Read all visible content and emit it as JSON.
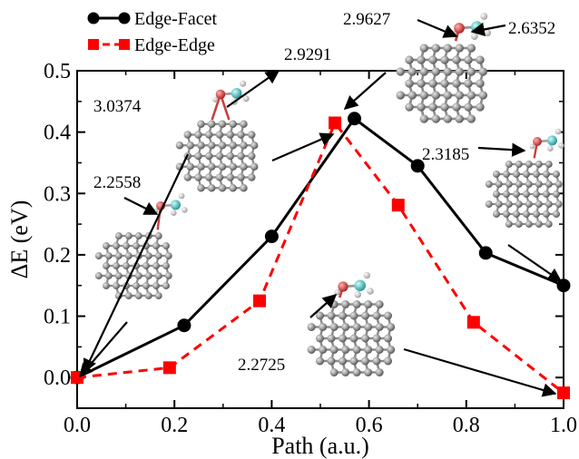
{
  "chart_data": {
    "type": "line",
    "xlabel": "Path (a.u.)",
    "ylabel": "ΔE (eV)",
    "xlim": [
      0.0,
      1.0
    ],
    "ylim": [
      -0.05,
      0.5
    ],
    "xticks": [
      "0.0",
      "0.2",
      "0.4",
      "0.6",
      "0.8",
      "1.0"
    ],
    "yticks": [
      "0.0",
      "0.1",
      "0.2",
      "0.3",
      "0.4",
      "0.5"
    ],
    "grid": false,
    "legend_position": "top-left",
    "series": [
      {
        "name": "Edge-Facet",
        "color": "#000000",
        "marker": "circle",
        "line_style": "solid",
        "x": [
          0.0,
          0.22,
          0.4,
          0.57,
          0.7,
          0.84,
          1.0
        ],
        "y": [
          0.0,
          0.085,
          0.23,
          0.422,
          0.345,
          0.203,
          0.15
        ]
      },
      {
        "name": "Edge-Edge",
        "color": "#ff0000",
        "marker": "square",
        "line_style": "dashed",
        "x": [
          0.0,
          0.19,
          0.375,
          0.53,
          0.66,
          0.815,
          1.0
        ],
        "y": [
          0.0,
          0.016,
          0.125,
          0.415,
          0.281,
          0.09,
          -0.025
        ]
      }
    ],
    "annotations": [
      {
        "text": "2.2558"
      },
      {
        "text": "3.0374"
      },
      {
        "text": "2.9291"
      },
      {
        "text": "2.9627"
      },
      {
        "text": "2.6352"
      },
      {
        "text": "2.3185"
      },
      {
        "text": "2.2725"
      }
    ]
  },
  "colors": {
    "nanoparticle": "#8c8c8c",
    "oxygen": "#d23c3c",
    "carbon": "#3cb4b4",
    "hydrogen": "#e6e6e6"
  }
}
